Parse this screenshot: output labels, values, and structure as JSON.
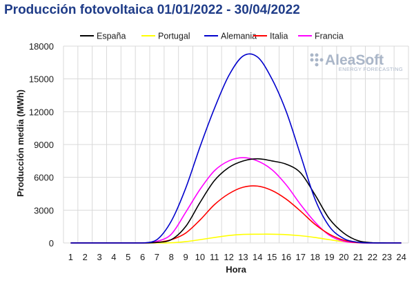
{
  "chart_data": {
    "type": "line",
    "title": "Producción fotovoltaica 01/01/2022 - 30/04/2022",
    "xlabel": "Hora",
    "ylabel": "Producción media (MWh)",
    "x": [
      1,
      2,
      3,
      4,
      5,
      6,
      7,
      8,
      9,
      10,
      11,
      12,
      13,
      14,
      15,
      16,
      17,
      18,
      19,
      20,
      21,
      22,
      23,
      24
    ],
    "ylim": [
      0,
      18000
    ],
    "yticks": [
      "0",
      "3000",
      "6000",
      "9000",
      "12000",
      "15000",
      "18000"
    ],
    "grid": true,
    "legend_position": "top",
    "series": [
      {
        "name": "España",
        "color": "#000000",
        "values": [
          0,
          0,
          0,
          0,
          0,
          0,
          50,
          300,
          1500,
          3700,
          5700,
          6900,
          7500,
          7700,
          7500,
          7200,
          6400,
          4400,
          2200,
          900,
          200,
          20,
          0,
          0
        ]
      },
      {
        "name": "Portugal",
        "color": "#ffff00",
        "values": [
          0,
          0,
          0,
          0,
          0,
          0,
          0,
          20,
          120,
          300,
          500,
          680,
          780,
          800,
          800,
          760,
          660,
          500,
          300,
          120,
          30,
          0,
          0,
          0
        ]
      },
      {
        "name": "Alemania",
        "color": "#0000cc",
        "values": [
          0,
          0,
          0,
          0,
          0,
          0,
          300,
          2000,
          5000,
          8800,
          12300,
          15300,
          17100,
          17000,
          15000,
          12000,
          8000,
          4000,
          1500,
          400,
          60,
          0,
          0,
          0
        ]
      },
      {
        "name": "Italia",
        "color": "#ff0000",
        "values": [
          0,
          0,
          0,
          0,
          0,
          0,
          50,
          300,
          900,
          2100,
          3500,
          4500,
          5100,
          5200,
          4800,
          4000,
          2900,
          1700,
          800,
          250,
          30,
          0,
          0,
          0
        ]
      },
      {
        "name": "Francia",
        "color": "#ff00ff",
        "values": [
          0,
          0,
          0,
          0,
          0,
          0,
          150,
          800,
          2800,
          4900,
          6600,
          7500,
          7800,
          7500,
          6700,
          5300,
          3500,
          1900,
          700,
          150,
          20,
          0,
          0,
          0
        ]
      }
    ]
  },
  "logo": {
    "name": "AleaSoft",
    "tagline": "ENERGY FORECASTING"
  }
}
